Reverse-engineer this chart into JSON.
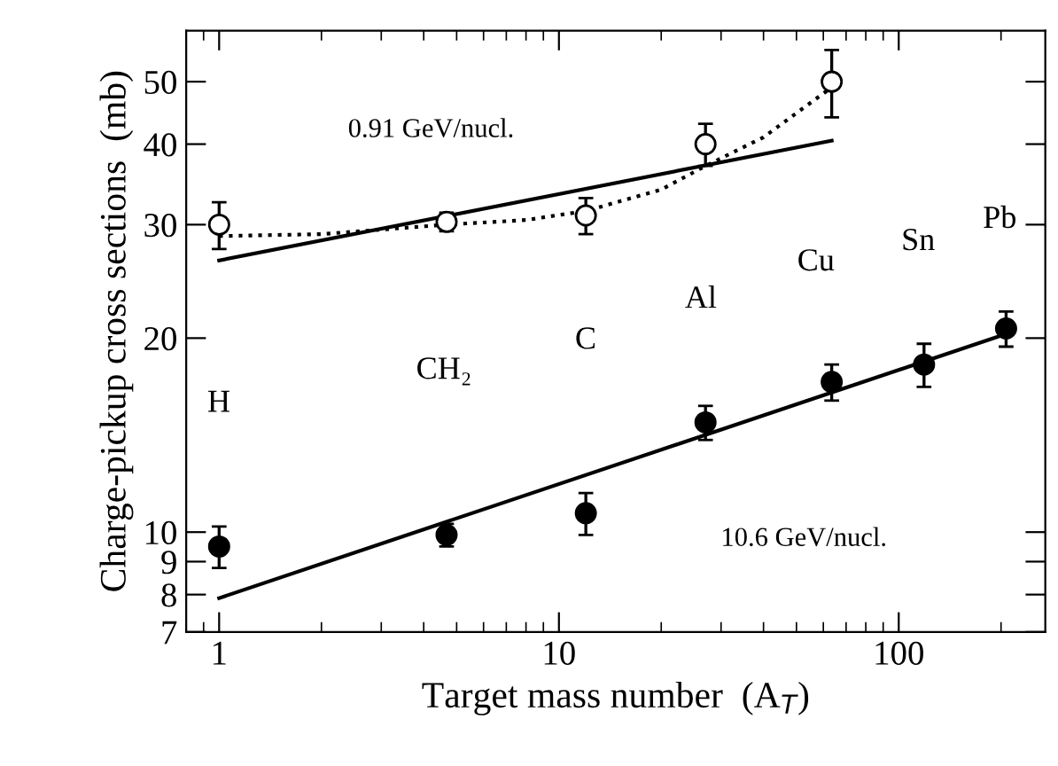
{
  "chart_data": {
    "type": "scatter",
    "xlabel": "Target mass number  (A$_{T}$)",
    "ylabel": "Charge-pickup cross sections  (mb)",
    "log": "xy",
    "xlim": [
      0.8,
      270
    ],
    "ylim": [
      7,
      60
    ],
    "xticks": [
      1,
      10,
      100
    ],
    "yticks": [
      7,
      8,
      9,
      10,
      20,
      30,
      40,
      50
    ],
    "grid": false,
    "legend": false,
    "series": [
      {
        "color": "#ffffff",
        "marker": "circle",
        "x": [
          1,
          4.67,
          12,
          27,
          63.5
        ],
        "values": [
          30,
          30.3,
          31,
          40,
          50
        ],
        "errors": [
          2.5,
          1,
          2,
          3,
          6
        ]
      },
      {
        "type": "line",
        "color": "#000000",
        "line_style": "dotted",
        "x": [
          1,
          2,
          4.67,
          8,
          12,
          20,
          27,
          40,
          63.5
        ],
        "values": [
          28.8,
          29,
          30,
          30.5,
          31.5,
          34,
          37,
          41,
          49
        ]
      },
      {
        "type": "line",
        "color": "#000000",
        "line_style": "solid",
        "x": [
          1,
          63.5
        ],
        "values": [
          26.4,
          40.5
        ]
      },
      {
        "color": "#000000",
        "marker": "circle",
        "x": [
          1,
          4.67,
          12,
          27,
          63.5,
          118.7,
          207
        ],
        "values": [
          9.5,
          9.9,
          10.7,
          14.8,
          17.1,
          18.2,
          20.7
        ],
        "errors": [
          0.7,
          0.4,
          0.8,
          0.9,
          1.1,
          1.4,
          1.3
        ]
      },
      {
        "type": "line",
        "color": "#000000",
        "line_style": "solid",
        "x": [
          1,
          207
        ],
        "values": [
          7.9,
          20.3
        ]
      }
    ],
    "annotations": [
      "0.91 GeV/nucl.",
      "10.6 GeV/nucl.",
      "H",
      "CH₂",
      "C",
      "Al",
      "Cu",
      "Sn",
      "Pb"
    ]
  }
}
